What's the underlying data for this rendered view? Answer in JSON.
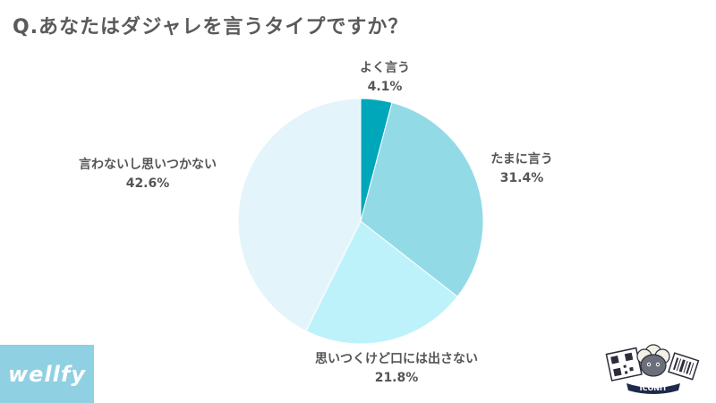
{
  "page": {
    "title": "Q.あなたはダジャレを言うタイプですか？"
  },
  "chart_data": {
    "type": "pie",
    "title": "Q.あなたはダジャレを言うタイプですか？",
    "start_angle": "12 o'clock",
    "direction": "clockwise",
    "slices": [
      {
        "label": "よく言う",
        "value": 4.1,
        "value_label": "4.1%",
        "color": "#00a7bb"
      },
      {
        "label": "たまに言う",
        "value": 31.4,
        "value_label": "31.4%",
        "color": "#93dae7"
      },
      {
        "label": "思いつくけど口には出さない",
        "value": 21.8,
        "value_label": "21.8%",
        "color": "#bdf2fb"
      },
      {
        "label": "言わないし思いつかない",
        "value": 42.6,
        "value_label": "42.6%",
        "color": "#e3f5fa"
      }
    ]
  },
  "branding": {
    "logo_text": "wellfy",
    "logo_color": "#8fd0e2",
    "mascot_text": "ICONIT"
  }
}
